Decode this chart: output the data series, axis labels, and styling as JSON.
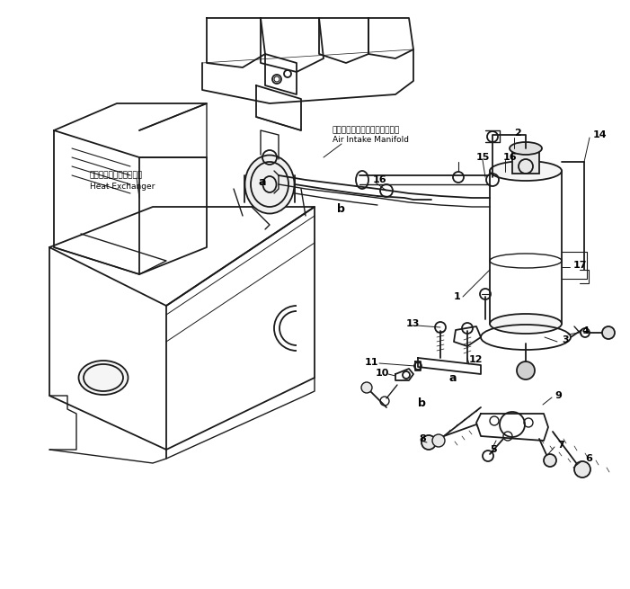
{
  "background_color": "#ffffff",
  "line_color": "#1a1a1a",
  "fig_width": 7.01,
  "fig_height": 6.55,
  "dpi": 100,
  "labels": {
    "heat_exchanger_jp": "ヒートエクスチェンジャ",
    "heat_exchanger_en": "Heat Exchanger",
    "air_intake_jp": "エアーインテークマニホールド",
    "air_intake_en": "Air Intake Manifold"
  }
}
